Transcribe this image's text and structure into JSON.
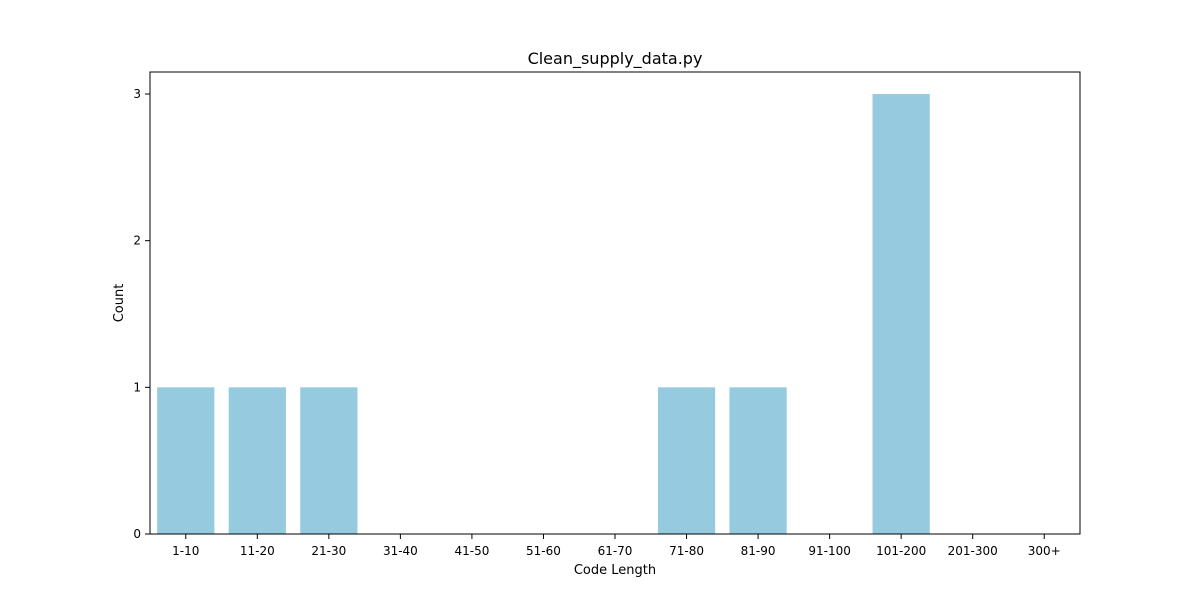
{
  "chart_data": {
    "type": "bar",
    "title": "Clean_supply_data.py",
    "xlabel": "Code Length",
    "ylabel": "Count",
    "categories": [
      "1-10",
      "11-20",
      "21-30",
      "31-40",
      "41-50",
      "51-60",
      "61-70",
      "71-80",
      "81-90",
      "91-100",
      "101-200",
      "201-300",
      "300+"
    ],
    "values": [
      1,
      1,
      1,
      0,
      0,
      0,
      0,
      1,
      1,
      0,
      3,
      0,
      0
    ],
    "ylim": [
      0,
      3.15
    ],
    "yticks": [
      "0",
      "1",
      "2",
      "3"
    ],
    "grid": false,
    "legend": "none",
    "bar_color": "#96cadf"
  }
}
